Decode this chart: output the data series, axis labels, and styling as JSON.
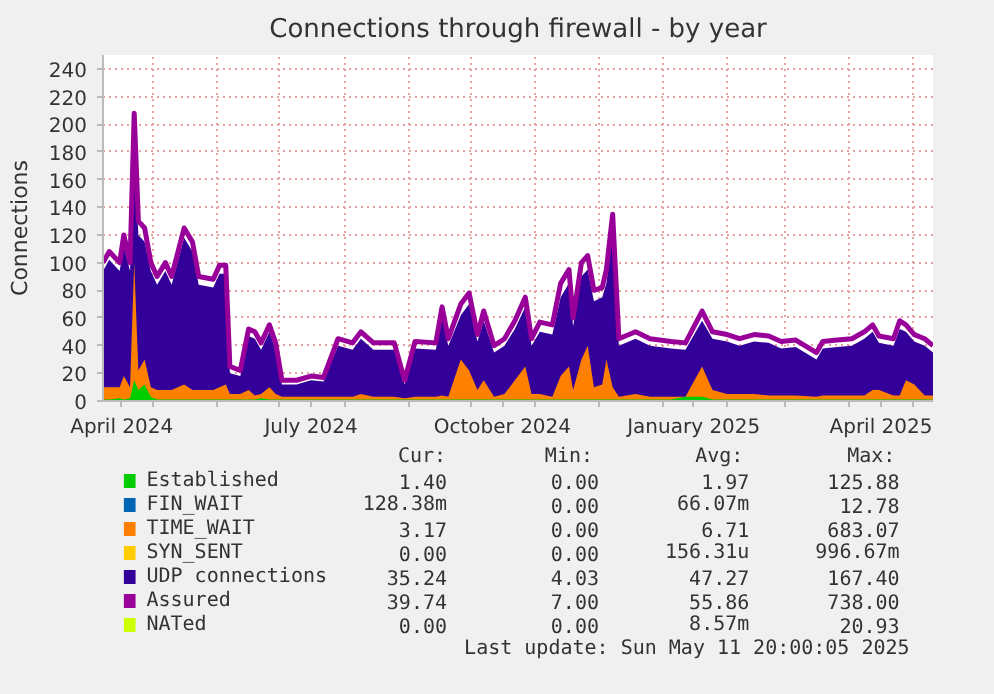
{
  "chart_data": {
    "type": "area",
    "title": "Connections through firewall - by year",
    "ylabel": "Connections",
    "x": [
      "2024-04-07",
      "2024-04-10",
      "2024-04-15",
      "2024-04-17",
      "2024-04-20",
      "2024-04-22",
      "2024-04-24",
      "2024-04-27",
      "2024-04-30",
      "2024-05-03",
      "2024-05-07",
      "2024-05-10",
      "2024-05-16",
      "2024-05-20",
      "2024-05-23",
      "2024-05-30",
      "2024-06-02",
      "2024-06-05",
      "2024-06-07",
      "2024-06-12",
      "2024-06-16",
      "2024-06-19",
      "2024-06-22",
      "2024-06-26",
      "2024-06-29",
      "2024-07-02",
      "2024-07-09",
      "2024-07-16",
      "2024-07-22",
      "2024-07-29",
      "2024-08-05",
      "2024-08-09",
      "2024-08-15",
      "2024-08-25",
      "2024-08-30",
      "2024-09-04",
      "2024-09-14",
      "2024-09-17",
      "2024-09-20",
      "2024-09-26",
      "2024-09-30",
      "2024-10-04",
      "2024-10-07",
      "2024-10-12",
      "2024-10-17",
      "2024-10-22",
      "2024-10-27",
      "2024-10-30",
      "2024-11-03",
      "2024-11-09",
      "2024-11-13",
      "2024-11-17",
      "2024-11-19",
      "2024-11-23",
      "2024-11-26",
      "2024-11-29",
      "2024-12-03",
      "2024-12-05",
      "2024-12-08",
      "2024-12-11",
      "2024-12-19",
      "2024-12-26",
      "2025-01-05",
      "2025-01-12",
      "2025-01-20",
      "2025-01-25",
      "2025-02-01",
      "2025-02-07",
      "2025-02-14",
      "2025-02-21",
      "2025-02-27",
      "2025-03-06",
      "2025-03-16",
      "2025-03-19",
      "2025-03-26",
      "2025-04-02",
      "2025-04-08",
      "2025-04-12",
      "2025-04-15",
      "2025-04-22",
      "2025-04-25",
      "2025-04-28",
      "2025-05-02",
      "2025-05-07",
      "2025-05-11"
    ],
    "series": [
      {
        "name": "Established",
        "color": "#00cc00",
        "values": [
          1,
          1,
          2,
          1,
          2,
          15,
          8,
          12,
          3,
          1,
          1,
          1,
          1,
          1,
          1,
          1,
          1,
          1,
          1,
          1,
          1,
          1,
          2,
          1,
          1,
          1,
          1,
          1,
          1,
          1,
          1,
          1,
          1,
          1,
          1,
          1,
          1,
          1,
          1,
          1,
          1,
          1,
          1,
          1,
          1,
          1,
          1,
          1,
          1,
          1,
          1,
          1,
          1,
          1,
          1,
          1,
          1,
          1,
          1,
          1,
          1,
          1,
          1,
          3,
          3,
          1,
          1,
          1,
          1,
          1,
          1,
          1,
          1,
          1,
          1,
          1,
          1,
          1,
          1,
          1,
          1,
          1,
          1,
          1,
          1
        ]
      },
      {
        "name": "FIN_WAIT",
        "color": "#0066b3",
        "values": [
          null,
          null,
          null,
          null,
          null,
          null,
          null,
          null,
          null,
          null,
          null,
          null,
          null,
          null,
          null,
          null,
          null,
          null,
          null,
          null,
          null,
          null,
          null,
          null,
          null,
          null,
          null,
          null,
          null,
          null,
          null,
          null,
          null,
          null,
          null,
          null,
          null,
          null,
          null,
          null,
          null,
          null,
          null,
          null,
          null,
          null,
          null,
          null,
          null,
          null,
          null,
          null,
          null,
          null,
          null,
          null,
          null,
          null,
          null,
          null,
          null,
          null,
          null,
          null,
          null,
          null,
          null,
          null,
          null,
          null,
          null,
          null,
          null,
          null,
          null,
          null,
          null,
          null,
          null,
          null,
          null,
          null,
          null,
          null,
          null
        ]
      },
      {
        "name": "TIME_WAIT",
        "color": "#ff8000",
        "values": [
          10,
          10,
          10,
          18,
          10,
          100,
          22,
          30,
          10,
          8,
          8,
          8,
          12,
          8,
          8,
          8,
          10,
          12,
          5,
          5,
          8,
          4,
          5,
          10,
          5,
          3,
          3,
          3,
          3,
          3,
          3,
          5,
          3,
          3,
          2,
          3,
          3,
          4,
          3,
          30,
          22,
          8,
          15,
          3,
          5,
          15,
          25,
          5,
          5,
          3,
          18,
          25,
          8,
          30,
          40,
          10,
          12,
          30,
          10,
          3,
          5,
          3,
          3,
          3,
          25,
          8,
          5,
          5,
          5,
          4,
          4,
          4,
          3,
          4,
          4,
          4,
          4,
          8,
          8,
          4,
          4,
          15,
          12,
          4,
          4
        ]
      },
      {
        "name": "SYN_SENT",
        "color": "#ffcc00",
        "values": [
          null,
          null,
          null,
          null,
          null,
          null,
          null,
          null,
          null,
          null,
          null,
          null,
          null,
          null,
          null,
          null,
          null,
          null,
          null,
          null,
          null,
          null,
          null,
          null,
          null,
          null,
          null,
          null,
          null,
          null,
          null,
          null,
          null,
          null,
          null,
          null,
          null,
          null,
          null,
          null,
          null,
          null,
          null,
          null,
          null,
          null,
          null,
          null,
          null,
          null,
          null,
          null,
          null,
          null,
          null,
          null,
          null,
          null,
          null,
          null,
          null,
          null,
          null,
          null,
          null,
          null,
          null,
          null,
          null,
          null,
          null,
          null,
          null,
          null,
          null,
          null,
          null,
          null,
          null,
          null,
          null,
          null,
          null,
          null,
          null
        ]
      },
      {
        "name": "UDP connections",
        "color": "#330099",
        "values": [
          94,
          102,
          94,
          112,
          94,
          180,
          120,
          115,
          94,
          84,
          94,
          84,
          118,
          108,
          84,
          82,
          92,
          92,
          20,
          18,
          47,
          45,
          37,
          50,
          37,
          12,
          12,
          15,
          14,
          40,
          37,
          45,
          37,
          37,
          12,
          38,
          37,
          60,
          40,
          62,
          70,
          43,
          58,
          35,
          40,
          52,
          68,
          40,
          50,
          48,
          75,
          85,
          54,
          90,
          95,
          72,
          75,
          85,
          120,
          40,
          45,
          40,
          38,
          37,
          58,
          45,
          43,
          40,
          43,
          42,
          38,
          39,
          30,
          38,
          39,
          40,
          45,
          50,
          42,
          40,
          52,
          50,
          43,
          40,
          35
        ]
      },
      {
        "name": "Assured",
        "type": "line",
        "color": "#990099",
        "values": [
          100,
          108,
          100,
          120,
          100,
          208,
          130,
          125,
          100,
          90,
          100,
          90,
          125,
          115,
          90,
          88,
          98,
          98,
          25,
          22,
          52,
          50,
          42,
          55,
          42,
          15,
          15,
          18,
          17,
          45,
          42,
          50,
          42,
          42,
          15,
          43,
          42,
          68,
          45,
          70,
          78,
          48,
          65,
          40,
          45,
          58,
          75,
          45,
          57,
          55,
          85,
          95,
          60,
          100,
          105,
          80,
          82,
          95,
          135,
          45,
          50,
          45,
          43,
          42,
          65,
          50,
          48,
          45,
          48,
          47,
          43,
          44,
          35,
          43,
          44,
          45,
          50,
          55,
          47,
          45,
          58,
          55,
          48,
          45,
          40
        ]
      },
      {
        "name": "NATed",
        "color": "#ccff00",
        "values": [
          null,
          null,
          null,
          null,
          null,
          null,
          null,
          null,
          null,
          null,
          null,
          null,
          null,
          null,
          null,
          null,
          null,
          null,
          null,
          null,
          null,
          null,
          null,
          null,
          null,
          null,
          null,
          null,
          null,
          null,
          null,
          null,
          null,
          null,
          null,
          null,
          null,
          null,
          null,
          null,
          null,
          null,
          null,
          null,
          null,
          null,
          null,
          null,
          null,
          null,
          null,
          null,
          null,
          null,
          null,
          null,
          null,
          null,
          null,
          null,
          null,
          null,
          null,
          null,
          null,
          null,
          null,
          null,
          null,
          null,
          null,
          null,
          null,
          null,
          null,
          null,
          null,
          null,
          null,
          null,
          null,
          null,
          null,
          null,
          null
        ]
      }
    ],
    "xlim": [
      "2024-04-07",
      "2025-05-11"
    ],
    "xticks": [
      {
        "value": "2024-04-16",
        "label": "April 2024"
      },
      {
        "value": "2024-05-01",
        "label": null
      },
      {
        "value": "2024-06-01",
        "label": null
      },
      {
        "value": "2024-07-01",
        "label": null
      },
      {
        "value": "2024-07-16",
        "label": "July 2024"
      },
      {
        "value": "2024-08-01",
        "label": null
      },
      {
        "value": "2024-09-01",
        "label": null
      },
      {
        "value": "2024-10-01",
        "label": null
      },
      {
        "value": "2024-10-16",
        "label": "October 2024"
      },
      {
        "value": "2024-11-01",
        "label": null
      },
      {
        "value": "2024-12-01",
        "label": null
      },
      {
        "value": "2025-01-01",
        "label": null
      },
      {
        "value": "2025-01-16",
        "label": "January 2025"
      },
      {
        "value": "2025-02-01",
        "label": null
      },
      {
        "value": "2025-03-01",
        "label": null
      },
      {
        "value": "2025-04-01",
        "label": null
      },
      {
        "value": "2025-04-16",
        "label": "April 2025"
      },
      {
        "value": "2025-05-01",
        "label": null
      }
    ],
    "ylim": [
      0,
      250
    ],
    "yticks": [
      0,
      20,
      40,
      60,
      80,
      100,
      120,
      140,
      160,
      180,
      200,
      220,
      240
    ],
    "grid": true,
    "legend": "bottom",
    "annotations": [
      "Cur:",
      "Min:",
      "Avg:",
      "Max:",
      "1.40",
      "0.00",
      "1.97",
      "125.88",
      "128.38m",
      "0.00",
      "66.07m",
      "12.78",
      "3.17",
      "0.00",
      "6.71",
      "683.07",
      "0.00",
      "0.00",
      "156.31u",
      "996.67m",
      "35.24",
      "4.03",
      "47.27",
      "167.40",
      "39.74",
      "7.00",
      "55.86",
      "738.00",
      "0.00",
      "0.00",
      "8.57m",
      "20.93",
      "Last update: Sun May 11 20:00:05 2025"
    ]
  }
}
